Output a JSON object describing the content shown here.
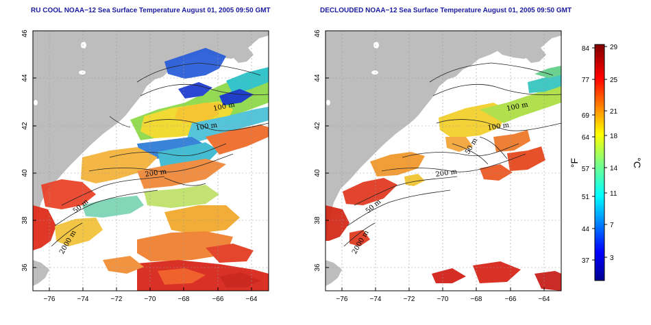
{
  "panels": [
    {
      "id": "left",
      "title": "RU COOL NOAA−12 Sea Surface Temperature August 01, 2005 09:50 GMT",
      "contour_labels": [
        "100 m",
        "100 m",
        "200 m",
        "50 m",
        "2000 m"
      ]
    },
    {
      "id": "right",
      "title": "DECLOUDED NOAA−12 Sea Surface Temperature August 01, 2005 09:50 GMT",
      "contour_labels": [
        "100 m",
        "100 m",
        "50 m",
        "200 m",
        "50 m",
        "2000 m"
      ]
    }
  ],
  "axes": {
    "lon_ticks": [
      "−76",
      "−74",
      "−72",
      "−70",
      "−68",
      "−66",
      "−64"
    ],
    "lat_ticks": [
      "36",
      "38",
      "40",
      "42",
      "44",
      "46"
    ],
    "lon_range": [
      -77,
      -63
    ],
    "lat_range": [
      35,
      46
    ]
  },
  "colorbar": {
    "fahrenheit_ticks": [
      "84",
      "77",
      "69",
      "64",
      "57",
      "51",
      "44",
      "37"
    ],
    "celsius_ticks": [
      "29",
      "25",
      "21",
      "18",
      "14",
      "11",
      "7",
      "3"
    ],
    "fahrenheit_unit": "°F",
    "celsius_unit": "°C",
    "colormap": "jet"
  },
  "colors": {
    "land": "#bdbdbd",
    "sea_no_data": "#ffffff",
    "title": "#1a1aa0",
    "grid": "#999999"
  }
}
